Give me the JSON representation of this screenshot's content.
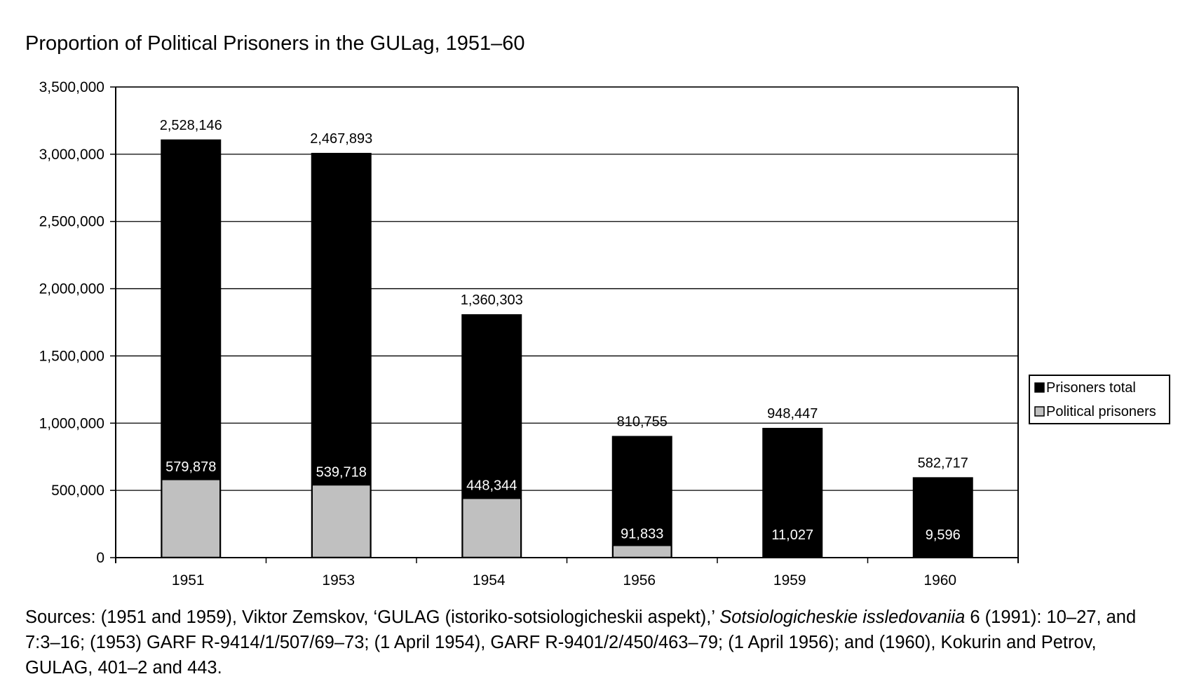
{
  "title": "Proportion of Political Prisoners in the GULag, 1951–60",
  "chart_data": {
    "type": "bar",
    "stacking": "overlaid",
    "categories": [
      "1951",
      "1953",
      "1954",
      "1956",
      "1959",
      "1960"
    ],
    "series": [
      {
        "name": "Prisoners total",
        "color": "#000000",
        "label_color": "#000000",
        "plotted_values": [
          3110000,
          3010000,
          1810000,
          905000,
          965000,
          598000
        ],
        "value_labels": [
          "2,528,146",
          "2,467,893",
          "1,360,303",
          "810,755",
          "948,447",
          "582,717"
        ]
      },
      {
        "name": "Political prisoners",
        "color": "#c0c0c0",
        "label_color": "#ffffff",
        "plotted_values": [
          580000,
          540000,
          440000,
          90000,
          0,
          0
        ],
        "value_labels": [
          "579,878",
          "539,718",
          "448,344",
          "91,833",
          "11,027",
          "9,596"
        ]
      }
    ],
    "ylim": [
      0,
      3500000
    ],
    "yticks": [
      0,
      500000,
      1000000,
      1500000,
      2000000,
      2500000,
      3000000,
      3500000
    ],
    "ytick_labels": [
      "0",
      "500,000",
      "1,000,000",
      "1,500,000",
      "2,000,000",
      "2,500,000",
      "3,000,000",
      "3,500,000"
    ],
    "xlabel": "",
    "ylabel": "",
    "grid": true,
    "legend_position": "right"
  },
  "sources": {
    "part1": "Sources: (1951 and 1959), Viktor Zemskov, ‘GULAG (istoriko-sotsiologicheskii aspekt),’ ",
    "journal": "Sotsiologicheskie issledovaniia",
    "part2": " 6 (1991): 10–27, and 7:3–16; (1953) GARF R-9414/1/507/69–73; (1 April 1954), GARF R-9401/2/450/463–79; (1 April 1956); and (1960), Kokurin and Petrov, GULAG, 401–2 and 443."
  }
}
